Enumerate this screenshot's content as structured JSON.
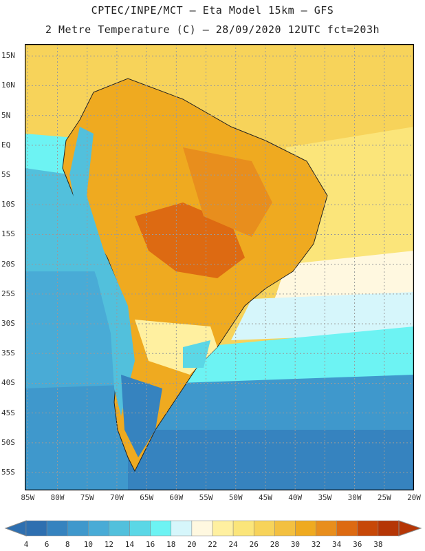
{
  "header": {
    "line1": "CPTEC/INPE/MCT –  Eta Model 15km – GFS",
    "line2": "2 Metre Temperature (C) – 28/09/2020 12UTC fct=203h"
  },
  "map": {
    "lat_labels": [
      "15N",
      "10N",
      "5N",
      "EQ",
      "5S",
      "10S",
      "15S",
      "20S",
      "25S",
      "30S",
      "35S",
      "40S",
      "45S",
      "50S",
      "55S"
    ],
    "lon_labels": [
      "85W",
      "80W",
      "75W",
      "70W",
      "65W",
      "60W",
      "55W",
      "50W",
      "45W",
      "40W",
      "35W",
      "30W",
      "25W",
      "20W"
    ],
    "lat_range": [
      17,
      -58
    ],
    "lon_range": [
      -85.5,
      -20
    ]
  },
  "colorbar": {
    "levels": [
      "4",
      "6",
      "8",
      "10",
      "12",
      "14",
      "16",
      "18",
      "20",
      "22",
      "24",
      "26",
      "28",
      "30",
      "32",
      "34",
      "36",
      "38"
    ],
    "colors": [
      "#2e6fb0",
      "#3683bf",
      "#3f98cc",
      "#49abd6",
      "#52c0dc",
      "#5bd7e6",
      "#6df3f3",
      "#d6f6fb",
      "#fff8e0",
      "#fff0a0",
      "#fbe57a",
      "#f7d35a",
      "#f3c040",
      "#efaa20",
      "#e88e1d",
      "#dd6a12",
      "#c74808",
      "#b53606"
    ]
  }
}
